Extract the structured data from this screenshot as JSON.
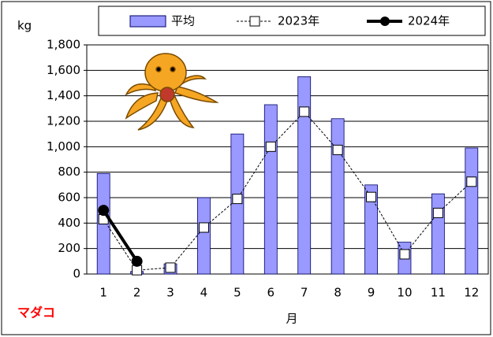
{
  "chart_data": {
    "type": "bar",
    "y_label": "kg",
    "x_label": "月",
    "annotation": "マダコ",
    "categories": [
      "1",
      "2",
      "3",
      "4",
      "5",
      "6",
      "7",
      "8",
      "9",
      "10",
      "11",
      "12"
    ],
    "series": [
      {
        "name": "平均",
        "type": "bar",
        "color": "#9999ff",
        "values": [
          790,
          20,
          80,
          600,
          1100,
          1330,
          1550,
          1220,
          700,
          250,
          630,
          990
        ]
      },
      {
        "name": "2023年",
        "type": "line",
        "color": "#000000",
        "dashed": true,
        "marker": "square",
        "values": [
          430,
          30,
          50,
          365,
          590,
          1000,
          1275,
          975,
          605,
          155,
          480,
          725
        ]
      },
      {
        "name": "2024年",
        "type": "line",
        "color": "#000000",
        "dashed": false,
        "marker": "circle",
        "values": [
          500,
          100,
          null,
          null,
          null,
          null,
          null,
          null,
          null,
          null,
          null,
          null
        ]
      }
    ],
    "ylim": [
      0,
      1800
    ],
    "yticks": [
      0,
      200,
      400,
      600,
      800,
      {
        "value": 1000,
        "label": "1,000"
      },
      {
        "value": 1200,
        "label": "1,200"
      },
      {
        "value": 1400,
        "label": "1,400"
      },
      {
        "value": 1600,
        "label": "1,600"
      },
      {
        "value": 1800,
        "label": "1,800"
      }
    ],
    "grid": true
  }
}
